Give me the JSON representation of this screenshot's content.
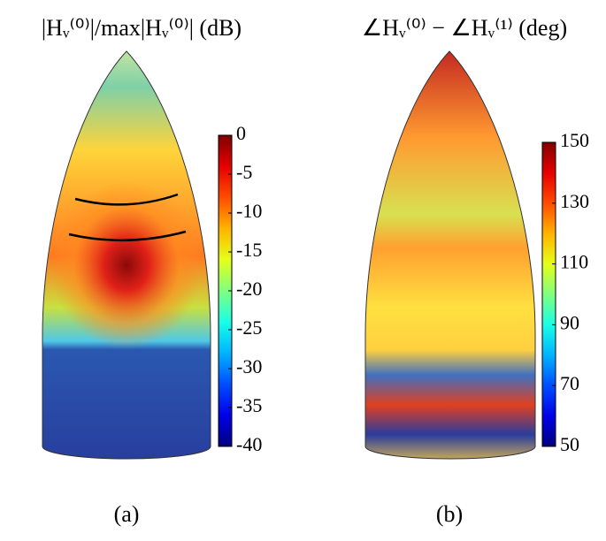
{
  "chart_data": [
    {
      "type": "surface",
      "title": "|Hᵥ⁽⁰⁾|/max|Hᵥ⁽⁰⁾| (dB)",
      "caption": "(a)",
      "colormap": "jet",
      "clim": [
        -40,
        0
      ],
      "cticks": [
        0,
        -5,
        -10,
        -15,
        -20,
        -25,
        -30,
        -35,
        -40
      ]
    },
    {
      "type": "surface",
      "title": "∠Hᵥ⁽⁰⁾ − ∠Hᵥ⁽¹⁾ (deg)",
      "caption": "(b)",
      "colormap": "jet",
      "clim": [
        50,
        150
      ],
      "cticks": [
        150,
        130,
        110,
        90,
        70,
        50
      ]
    }
  ]
}
